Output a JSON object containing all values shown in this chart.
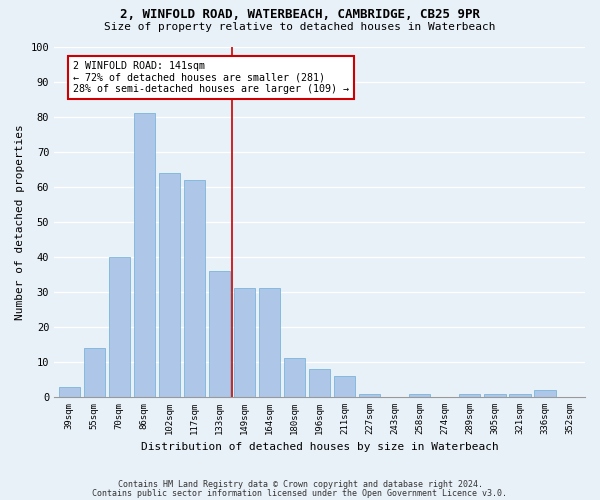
{
  "title_line1": "2, WINFOLD ROAD, WATERBEACH, CAMBRIDGE, CB25 9PR",
  "title_line2": "Size of property relative to detached houses in Waterbeach",
  "xlabel": "Distribution of detached houses by size in Waterbeach",
  "ylabel": "Number of detached properties",
  "categories": [
    "39sqm",
    "55sqm",
    "70sqm",
    "86sqm",
    "102sqm",
    "117sqm",
    "133sqm",
    "149sqm",
    "164sqm",
    "180sqm",
    "196sqm",
    "211sqm",
    "227sqm",
    "243sqm",
    "258sqm",
    "274sqm",
    "289sqm",
    "305sqm",
    "321sqm",
    "336sqm",
    "352sqm"
  ],
  "values": [
    3,
    14,
    40,
    81,
    64,
    62,
    36,
    31,
    31,
    11,
    8,
    6,
    1,
    0,
    1,
    0,
    1,
    1,
    1,
    2,
    0
  ],
  "bar_color": "#aec6e8",
  "bar_edge_color": "#6baed6",
  "background_color": "#e8f0f8",
  "grid_color": "#ffffff",
  "marker_label": "2 WINFOLD ROAD: 141sqm",
  "marker_sublabel1": "← 72% of detached houses are smaller (281)",
  "marker_sublabel2": "28% of semi-detached houses are larger (109) →",
  "annotation_box_color": "#ffffff",
  "annotation_border_color": "#cc0000",
  "vline_color": "#cc0000",
  "vline_x": 6.5,
  "ylim": [
    0,
    100
  ],
  "yticks": [
    0,
    10,
    20,
    30,
    40,
    50,
    60,
    70,
    80,
    90,
    100
  ],
  "footnote1": "Contains HM Land Registry data © Crown copyright and database right 2024.",
  "footnote2": "Contains public sector information licensed under the Open Government Licence v3.0."
}
